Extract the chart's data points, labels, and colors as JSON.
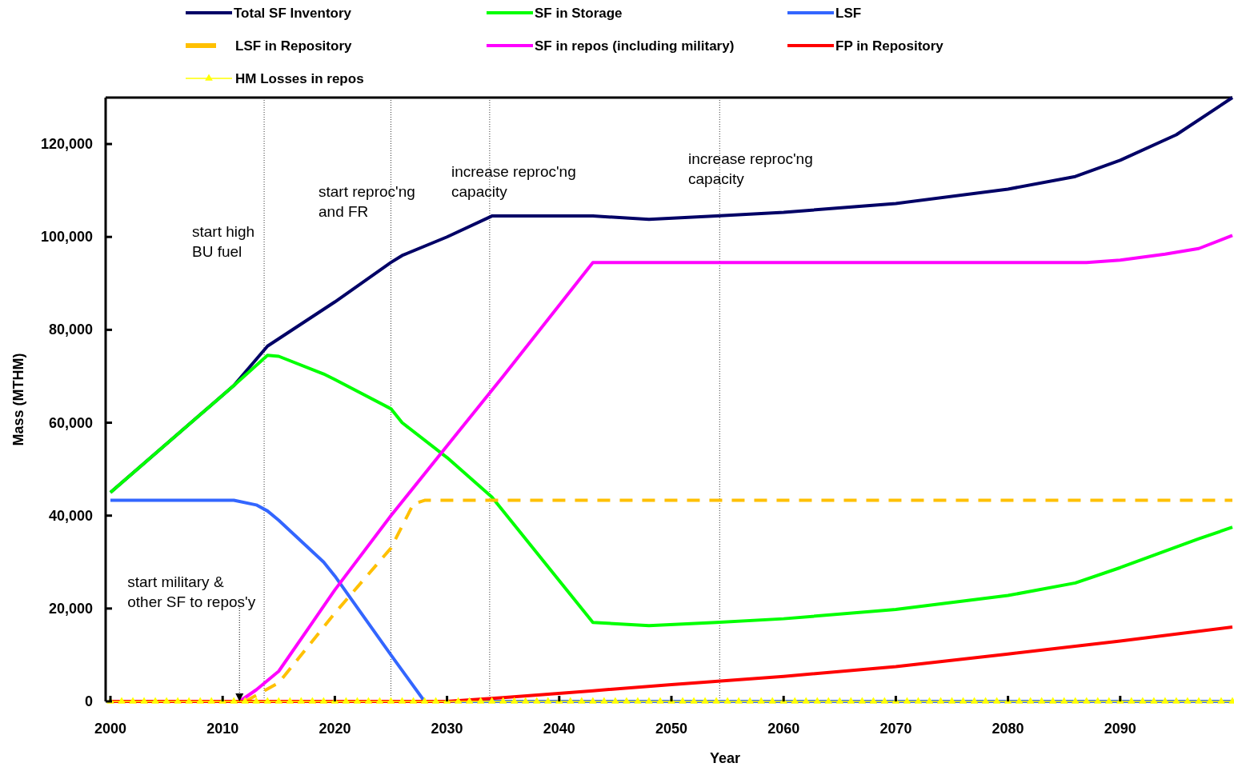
{
  "chart_data": {
    "type": "line",
    "xlabel": "Year",
    "ylabel": "Mass (MTHM)",
    "xlim": [
      2000,
      2100
    ],
    "ylim": [
      0,
      130000
    ],
    "xticks": [
      2000,
      2010,
      2020,
      2030,
      2040,
      2050,
      2060,
      2070,
      2080,
      2090
    ],
    "yticks": [
      {
        "value": 0,
        "label": "0"
      },
      {
        "value": 20000,
        "label": "20,000"
      },
      {
        "value": 40000,
        "label": "40,000"
      },
      {
        "value": 60000,
        "label": "60,000"
      },
      {
        "value": 80000,
        "label": "80,000"
      },
      {
        "value": 100000,
        "label": "100,000"
      },
      {
        "value": 120000,
        "label": "120,000"
      }
    ],
    "grid": false,
    "legend": "top",
    "series": [
      {
        "name": "Total SF Inventory",
        "color": "#000066",
        "x": [
          2000,
          2011,
          2014,
          2020,
          2025,
          2026,
          2030,
          2034,
          2043,
          2048,
          2054,
          2060,
          2070,
          2080,
          2086,
          2090,
          2095,
          2100
        ],
        "values": [
          45000,
          68000,
          76500,
          86000,
          94500,
          96000,
          100000,
          104500,
          104500,
          103800,
          104500,
          105300,
          107200,
          110300,
          113000,
          116500,
          122000,
          130000
        ]
      },
      {
        "name": "SF in Storage",
        "color": "#00ff00",
        "x": [
          2000,
          2011,
          2014,
          2015,
          2019,
          2020,
          2025,
          2026,
          2030,
          2034,
          2043,
          2048,
          2054,
          2060,
          2070,
          2080,
          2086,
          2090,
          2097,
          2100
        ],
        "values": [
          45000,
          68000,
          74500,
          74300,
          70500,
          69300,
          63000,
          60000,
          52500,
          44000,
          17000,
          16300,
          17000,
          17800,
          19800,
          22800,
          25500,
          28800,
          35000,
          37500
        ]
      },
      {
        "name": "LSF",
        "color": "#3366ff",
        "x": [
          2000,
          2011,
          2013,
          2014,
          2015,
          2019,
          2020,
          2025,
          2028,
          2100
        ],
        "values": [
          43300,
          43300,
          42300,
          41000,
          39000,
          30000,
          27000,
          10000,
          0,
          0
        ]
      },
      {
        "name": "LSF in Repository",
        "color": "#ffc000",
        "line_style": "dashed",
        "x": [
          2000,
          2012,
          2015,
          2020,
          2025,
          2027,
          2028,
          2100
        ],
        "values": [
          0,
          0,
          4000,
          19000,
          33000,
          42500,
          43300,
          43300
        ]
      },
      {
        "name": "SF in repos (including military)",
        "color": "#ff00ff",
        "x": [
          2000,
          2011.5,
          2013,
          2015,
          2018,
          2020,
          2025,
          2030,
          2035,
          2043,
          2087,
          2090,
          2094,
          2097,
          2100
        ],
        "values": [
          0,
          0,
          2500,
          6500,
          17000,
          24000,
          40000,
          55000,
          70000,
          94500,
          94500,
          95000,
          96300,
          97500,
          100300
        ]
      },
      {
        "name": "FP in Repository",
        "color": "#ff0000",
        "x": [
          2000,
          2030,
          2035,
          2043,
          2050,
          2060,
          2070,
          2080,
          2090,
          2100
        ],
        "values": [
          0,
          0,
          800,
          2300,
          3600,
          5400,
          7500,
          10200,
          13000,
          16000
        ]
      },
      {
        "name": "HM Losses in repos",
        "color": "#ffff00",
        "marker": "triangle",
        "x": [
          2000,
          2001,
          2002,
          2003,
          2004,
          2005,
          2006,
          2007,
          2008,
          2009,
          2010,
          2011,
          2012,
          2013,
          2014,
          2015,
          2016,
          2017,
          2018,
          2019,
          2020,
          2021,
          2022,
          2023,
          2024,
          2025,
          2026,
          2027,
          2028,
          2029,
          2030,
          2031,
          2032,
          2033,
          2034,
          2035,
          2036,
          2037,
          2038,
          2039,
          2040,
          2041,
          2042,
          2043,
          2044,
          2045,
          2046,
          2047,
          2048,
          2049,
          2050,
          2051,
          2052,
          2053,
          2054,
          2055,
          2056,
          2057,
          2058,
          2059,
          2060,
          2061,
          2062,
          2063,
          2064,
          2065,
          2066,
          2067,
          2068,
          2069,
          2070,
          2071,
          2072,
          2073,
          2074,
          2075,
          2076,
          2077,
          2078,
          2079,
          2080,
          2081,
          2082,
          2083,
          2084,
          2085,
          2086,
          2087,
          2088,
          2089,
          2090,
          2091,
          2092,
          2093,
          2094,
          2095,
          2096,
          2097,
          2098,
          2099,
          2100
        ],
        "values": [
          0,
          0,
          0,
          0,
          0,
          0,
          0,
          0,
          0,
          0,
          0,
          0,
          0,
          0,
          0,
          0,
          0,
          0,
          0,
          0,
          0,
          0,
          0,
          0,
          0,
          0,
          0,
          0,
          0,
          0,
          0,
          0,
          0,
          0,
          0,
          0,
          0,
          0,
          0,
          0,
          0,
          0,
          0,
          0,
          0,
          0,
          0,
          0,
          0,
          0,
          0,
          0,
          0,
          0,
          0,
          0,
          0,
          0,
          0,
          0,
          0,
          0,
          0,
          0,
          0,
          0,
          0,
          0,
          0,
          0,
          0,
          0,
          0,
          0,
          0,
          0,
          0,
          0,
          0,
          0,
          0,
          0,
          0,
          0,
          0,
          0,
          0,
          0,
          0,
          0,
          0,
          0,
          0,
          0,
          0,
          0,
          0,
          0,
          0,
          0,
          0
        ]
      }
    ],
    "ref_lines": [
      {
        "axis": "x",
        "value": 2013.7,
        "line_style": "dotted"
      },
      {
        "axis": "x",
        "value": 2025,
        "line_style": "dotted"
      },
      {
        "axis": "x",
        "value": 2033.8,
        "line_style": "dotted"
      },
      {
        "axis": "x",
        "value": 2054.3,
        "line_style": "dotted"
      }
    ],
    "annotations": [
      "start high\nBU fuel",
      "start reproc'ng\nand FR",
      "increase reproc'ng\ncapacity",
      "increase reproc'ng\ncapacity",
      {
        "text": "start military &\nother SF to repos'y",
        "x": 2011.5,
        "y": 0
      }
    ]
  }
}
